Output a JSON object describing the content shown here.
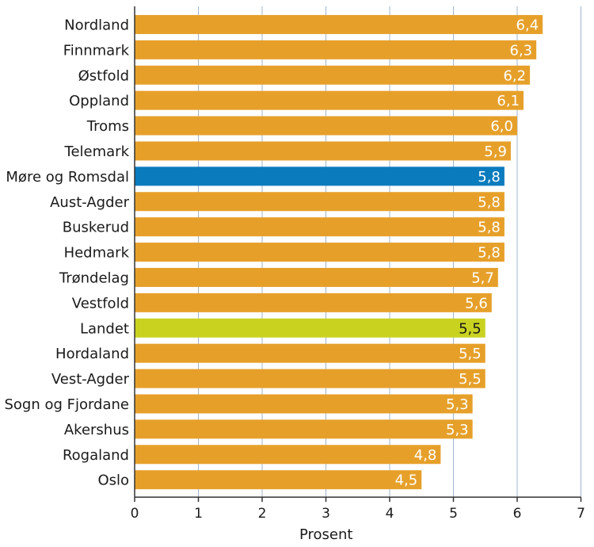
{
  "chart_data": {
    "type": "bar",
    "orientation": "horizontal",
    "xlabel": "Prosent",
    "xlim": [
      0,
      7
    ],
    "xticks": [
      0,
      1,
      2,
      3,
      4,
      5,
      6,
      7
    ],
    "grid": "vertical",
    "categories": [
      "Nordland",
      "Finnmark",
      "Østfold",
      "Oppland",
      "Troms",
      "Telemark",
      "Møre og Romsdal",
      "Aust-Agder",
      "Buskerud",
      "Hedmark",
      "Trøndelag",
      "Vestfold",
      "Landet",
      "Hordaland",
      "Vest-Agder",
      "Sogn og Fjordane",
      "Akershus",
      "Rogaland",
      "Oslo"
    ],
    "values": [
      6.4,
      6.3,
      6.2,
      6.1,
      6.0,
      5.9,
      5.8,
      5.8,
      5.8,
      5.8,
      5.7,
      5.6,
      5.5,
      5.5,
      5.5,
      5.3,
      5.3,
      4.8,
      4.5
    ],
    "value_labels": [
      "6,4",
      "6,3",
      "6,2",
      "6,1",
      "6,0",
      "5,9",
      "5,8",
      "5,8",
      "5,8",
      "5,8",
      "5,7",
      "5,6",
      "5,5",
      "5,5",
      "5,5",
      "5,3",
      "5,3",
      "4,8",
      "4,5"
    ],
    "colors": {
      "default": "#e6a02a",
      "highlight_region": "#0a7bbd",
      "national": "#c9d21f",
      "grid": "#9fb6cc",
      "axis": "#333333"
    },
    "highlight": {
      "Møre og Romsdal": "highlight_region",
      "Landet": "national"
    }
  }
}
